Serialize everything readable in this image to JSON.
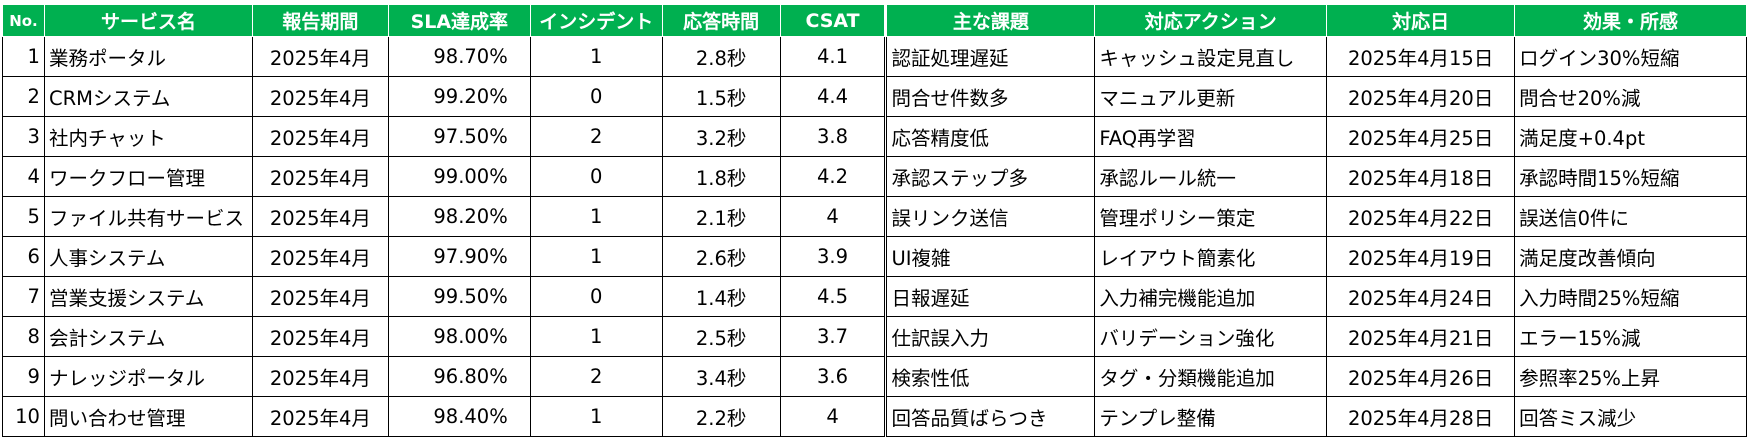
{
  "headers": {
    "no": "No.",
    "service": "サービス名",
    "period": "報告期間",
    "sla": "SLA達成率",
    "incident": "インシデント",
    "response": "応答時間",
    "csat": "CSAT",
    "issue": "主な課題",
    "action": "対応アクション",
    "date": "対応日",
    "effect": "効果・所感"
  },
  "rows": [
    {
      "no": "1",
      "service": "業務ポータル",
      "period": "2025年4月",
      "sla": "98.70%",
      "incident": "1",
      "response": "2.8秒",
      "csat": "4.1",
      "issue": "認証処理遅延",
      "action": "キャッシュ設定見直し",
      "date": "2025年4月15日",
      "effect": "ログイン30%短縮"
    },
    {
      "no": "2",
      "service": "CRMシステム",
      "period": "2025年4月",
      "sla": "99.20%",
      "incident": "0",
      "response": "1.5秒",
      "csat": "4.4",
      "issue": "問合せ件数多",
      "action": "マニュアル更新",
      "date": "2025年4月20日",
      "effect": "問合せ20%減"
    },
    {
      "no": "3",
      "service": "社内チャット",
      "period": "2025年4月",
      "sla": "97.50%",
      "incident": "2",
      "response": "3.2秒",
      "csat": "3.8",
      "issue": "応答精度低",
      "action": "FAQ再学習",
      "date": "2025年4月25日",
      "effect": "満足度+0.4pt"
    },
    {
      "no": "4",
      "service": "ワークフロー管理",
      "period": "2025年4月",
      "sla": "99.00%",
      "incident": "0",
      "response": "1.8秒",
      "csat": "4.2",
      "issue": "承認ステップ多",
      "action": "承認ルール統一",
      "date": "2025年4月18日",
      "effect": "承認時間15%短縮"
    },
    {
      "no": "5",
      "service": "ファイル共有サービス",
      "period": "2025年4月",
      "sla": "98.20%",
      "incident": "1",
      "response": "2.1秒",
      "csat": "4",
      "issue": "誤リンク送信",
      "action": "管理ポリシー策定",
      "date": "2025年4月22日",
      "effect": "誤送信0件に"
    },
    {
      "no": "6",
      "service": "人事システム",
      "period": "2025年4月",
      "sla": "97.90%",
      "incident": "1",
      "response": "2.6秒",
      "csat": "3.9",
      "issue": "UI複雑",
      "action": "レイアウト簡素化",
      "date": "2025年4月19日",
      "effect": "満足度改善傾向"
    },
    {
      "no": "7",
      "service": "営業支援システム",
      "period": "2025年4月",
      "sla": "99.50%",
      "incident": "0",
      "response": "1.4秒",
      "csat": "4.5",
      "issue": "日報遅延",
      "action": "入力補完機能追加",
      "date": "2025年4月24日",
      "effect": "入力時間25%短縮"
    },
    {
      "no": "8",
      "service": "会計システム",
      "period": "2025年4月",
      "sla": "98.00%",
      "incident": "1",
      "response": "2.5秒",
      "csat": "3.7",
      "issue": "仕訳誤入力",
      "action": "バリデーション強化",
      "date": "2025年4月21日",
      "effect": "エラー15%減"
    },
    {
      "no": "9",
      "service": "ナレッジポータル",
      "period": "2025年4月",
      "sla": "96.80%",
      "incident": "2",
      "response": "3.4秒",
      "csat": "3.6",
      "issue": "検索性低",
      "action": "タグ・分類機能追加",
      "date": "2025年4月26日",
      "effect": "参照率25%上昇"
    },
    {
      "no": "10",
      "service": "問い合わせ管理",
      "period": "2025年4月",
      "sla": "98.40%",
      "incident": "1",
      "response": "2.2秒",
      "csat": "4",
      "issue": "回答品質ばらつき",
      "action": "テンプレ整備",
      "date": "2025年4月28日",
      "effect": "回答ミス減少"
    }
  ],
  "colors": {
    "header_bg": "#00b050",
    "header_text": "#ffffff",
    "border": "#000000"
  }
}
